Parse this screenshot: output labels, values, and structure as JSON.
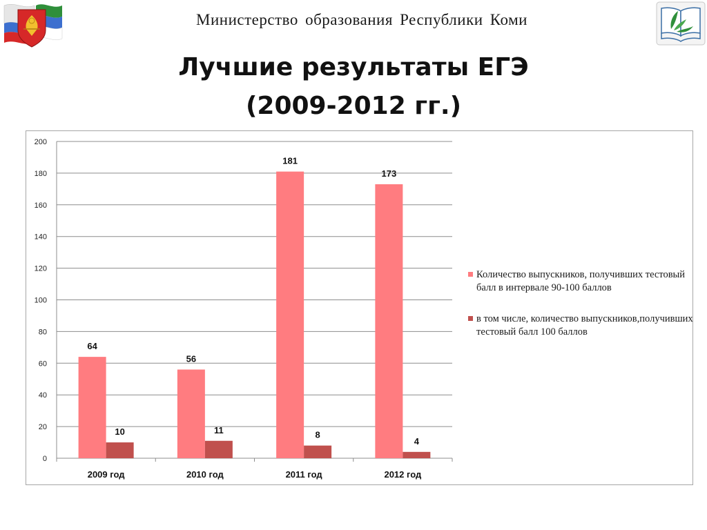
{
  "header": {
    "ministry_text": "Министерство   образования  Республики   Коми"
  },
  "title": {
    "line1": "Лучшие результаты ЕГЭ",
    "line2": "(2009-2012 гг.)"
  },
  "icons": {
    "left": "komi-coat-of-arms-icon",
    "right": "open-book-icon"
  },
  "colors": {
    "series1": "#ff7c80",
    "series2": "#c0504d",
    "grid": "#8c8c8c"
  },
  "chart_data": {
    "type": "bar",
    "categories": [
      "2009 год",
      "2010 год",
      "2011 год",
      "2012 год"
    ],
    "ylim": [
      0,
      200
    ],
    "yticks": [
      0,
      20,
      40,
      60,
      80,
      100,
      120,
      140,
      160,
      180,
      200
    ],
    "grid": true,
    "legend_position": "right",
    "series": [
      {
        "name": "Количество выпускников, получивших тестовый балл в интервале 90-100 баллов",
        "values": [
          64,
          56,
          181,
          173
        ],
        "color": "#ff7c80"
      },
      {
        "name": " в том числе, количество выпускников,получивших  тестовый балл 100 баллов",
        "values": [
          10,
          11,
          8,
          4
        ],
        "color": "#c0504d"
      }
    ]
  }
}
